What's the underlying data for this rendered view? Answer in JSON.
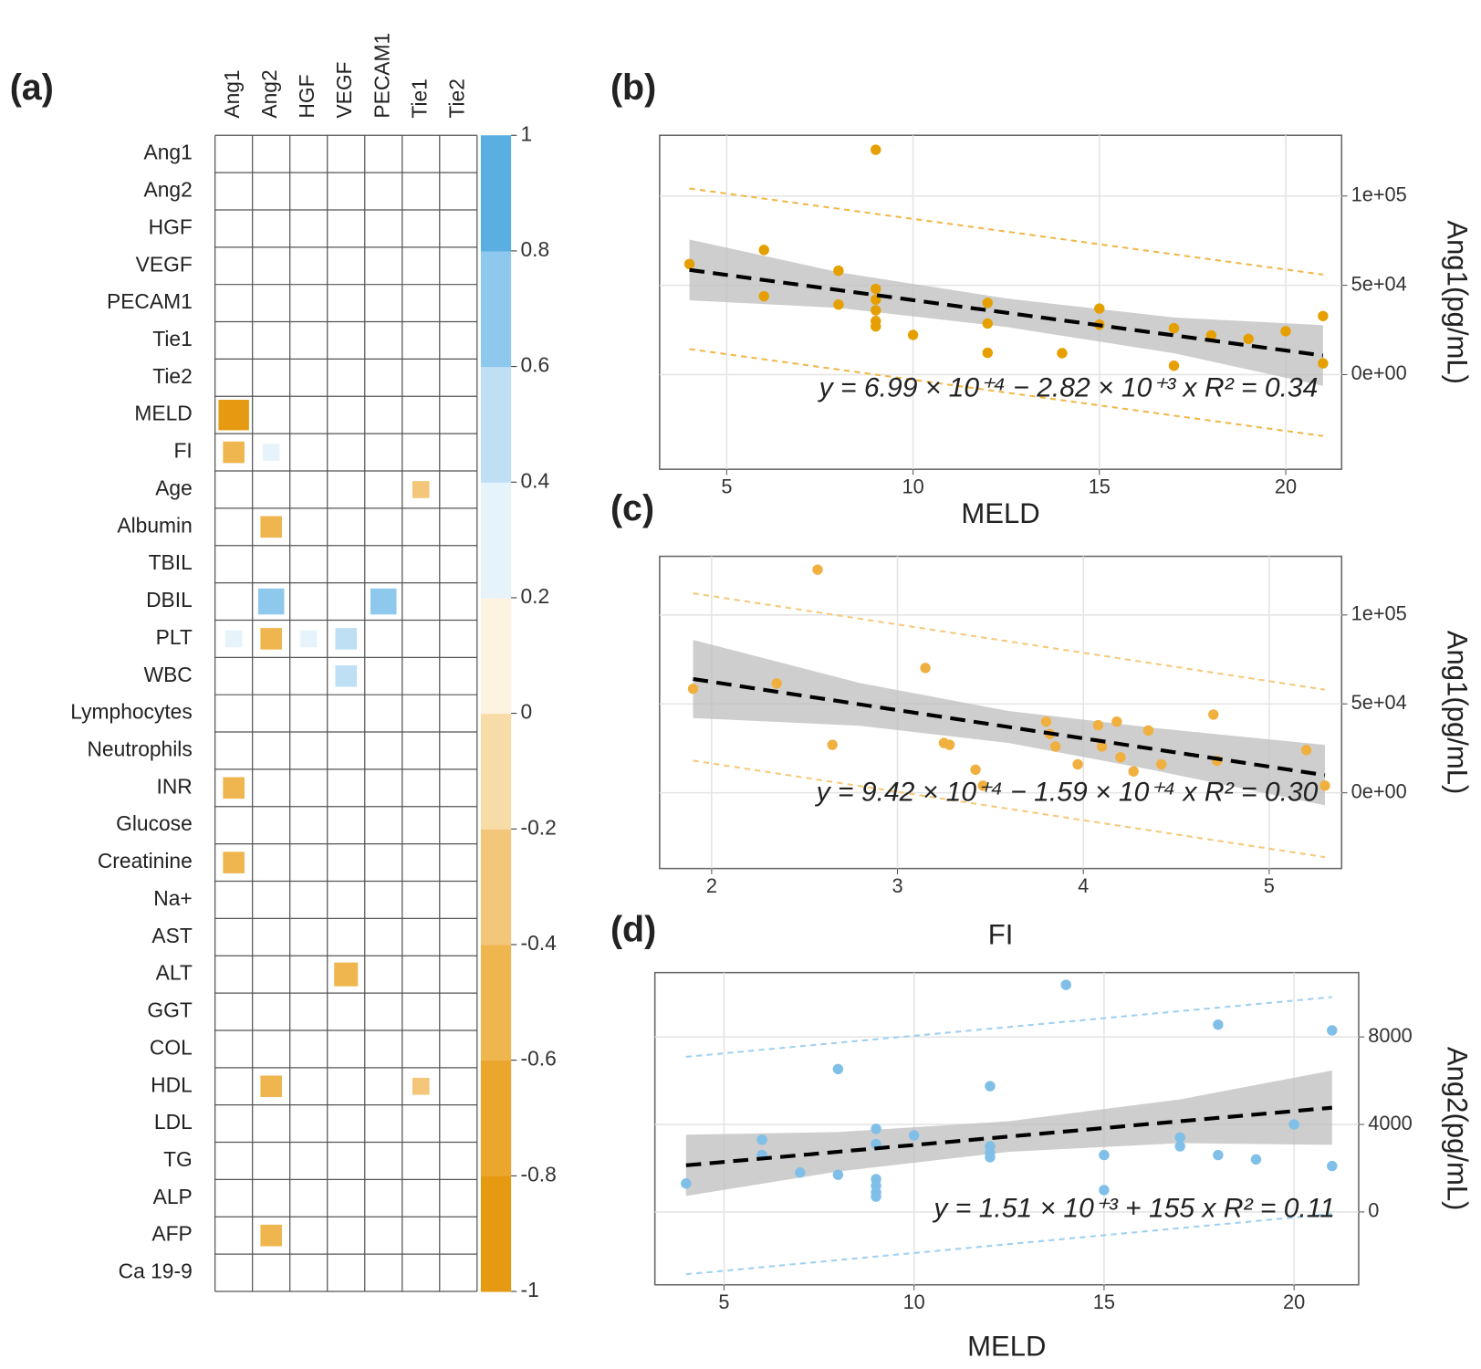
{
  "chart_data": [
    {
      "type": "heatmap",
      "panel_label": "(a)",
      "columns": [
        "Ang1",
        "Ang2",
        "HGF",
        "VEGF",
        "PECAM1",
        "Tie1",
        "Tie2"
      ],
      "rows": [
        "Ang1",
        "Ang2",
        "HGF",
        "VEGF",
        "PECAM1",
        "Tie1",
        "Tie2",
        "MELD",
        "FI",
        "Age",
        "Albumin",
        "TBIL",
        "DBIL",
        "PLT",
        "WBC",
        "Lymphocytes",
        "Neutrophils",
        "INR",
        "Glucose",
        "Creatinine",
        "Na+",
        "AST",
        "ALT",
        "GGT",
        "COL",
        "HDL",
        "LDL",
        "TG",
        "ALP",
        "AFP",
        "Ca 19-9"
      ],
      "cells": [
        [
          null,
          null,
          null,
          null,
          null,
          null,
          null
        ],
        [
          null,
          null,
          null,
          null,
          null,
          null,
          null
        ],
        [
          null,
          null,
          null,
          null,
          null,
          null,
          null
        ],
        [
          null,
          null,
          null,
          null,
          null,
          null,
          null
        ],
        [
          null,
          null,
          null,
          null,
          null,
          null,
          null
        ],
        [
          null,
          null,
          null,
          null,
          null,
          null,
          null
        ],
        [
          null,
          null,
          null,
          null,
          null,
          null,
          null
        ],
        [
          -0.9,
          null,
          null,
          null,
          null,
          null,
          null
        ],
        [
          -0.5,
          0.3,
          null,
          null,
          null,
          null,
          null
        ],
        [
          null,
          null,
          null,
          null,
          null,
          -0.3,
          null
        ],
        [
          null,
          -0.5,
          null,
          null,
          null,
          null,
          null
        ],
        [
          null,
          null,
          null,
          null,
          null,
          null,
          null
        ],
        [
          null,
          0.7,
          null,
          null,
          0.7,
          null,
          null
        ],
        [
          0.3,
          -0.5,
          0.3,
          0.5,
          null,
          null,
          null
        ],
        [
          null,
          null,
          null,
          0.5,
          null,
          null,
          null
        ],
        [
          null,
          null,
          null,
          null,
          null,
          null,
          null
        ],
        [
          null,
          null,
          null,
          null,
          null,
          null,
          null
        ],
        [
          -0.5,
          null,
          null,
          null,
          null,
          null,
          null
        ],
        [
          null,
          null,
          null,
          null,
          null,
          null,
          null
        ],
        [
          -0.5,
          null,
          null,
          null,
          null,
          null,
          null
        ],
        [
          null,
          null,
          null,
          null,
          null,
          null,
          null
        ],
        [
          null,
          null,
          null,
          null,
          null,
          null,
          null
        ],
        [
          null,
          null,
          null,
          -0.6,
          null,
          null,
          null
        ],
        [
          null,
          null,
          null,
          null,
          null,
          null,
          null
        ],
        [
          null,
          null,
          null,
          null,
          null,
          null,
          null
        ],
        [
          null,
          -0.5,
          null,
          null,
          null,
          -0.3,
          null
        ],
        [
          null,
          null,
          null,
          null,
          null,
          null,
          null
        ],
        [
          null,
          null,
          null,
          null,
          null,
          null,
          null
        ],
        [
          null,
          null,
          null,
          null,
          null,
          null,
          null
        ],
        [
          null,
          -0.5,
          null,
          null,
          null,
          null,
          null
        ],
        [
          null,
          null,
          null,
          null,
          null,
          null,
          null
        ]
      ],
      "clim": [
        -1,
        1
      ],
      "cticks": [
        1,
        0.8,
        0.6,
        0.4,
        0.2,
        0,
        -0.2,
        -0.4,
        -0.6,
        -0.8,
        -1
      ],
      "colorscale": [
        "#e69a12",
        "#eba62e",
        "#efb54f",
        "#f3c67a",
        "#f8dca8",
        "#fdf3e1",
        "#e6f3fb",
        "#bfe0f4",
        "#8ec8ec",
        "#5aafe2"
      ]
    },
    {
      "type": "scatter",
      "panel_label": "(b)",
      "xlabel": "MELD",
      "ylabel": "Ang1(pg/mL)",
      "equation": "y = 6.99 × 10⁺⁴ − 2.82 × 10⁺³ x R² = 0.34",
      "color": "#e69f00",
      "pi_color": "#f0b84a",
      "band_color": "#bdbdbd",
      "line_color": "#000000",
      "grid": true,
      "xlim": [
        3.2,
        21.5
      ],
      "ylim": [
        -53000,
        134000
      ],
      "xticks": [
        5,
        10,
        15,
        20
      ],
      "yticks": [
        {
          "value": 0,
          "label": "0e+00"
        },
        {
          "value": 50000,
          "label": "5e+04"
        },
        {
          "value": 100000,
          "label": "1e+05"
        }
      ],
      "x": [
        4,
        6,
        6,
        8,
        8,
        9,
        9,
        9,
        9,
        9,
        9,
        10,
        12,
        12,
        12,
        14,
        15,
        15,
        17,
        17,
        18,
        19,
        20,
        21,
        21
      ],
      "y": [
        61900,
        69800,
        43900,
        58200,
        39200,
        125900,
        48000,
        42000,
        36000,
        30000,
        27000,
        22200,
        40200,
        28600,
        12200,
        12000,
        37000,
        28000,
        26000,
        5000,
        22000,
        20000,
        24300,
        32800,
        6300
      ],
      "fit": {
        "intercept": 69900,
        "slope": -2820
      },
      "ci": {
        "x": [
          4,
          8,
          12.5,
          17,
          21
        ],
        "lower": [
          41620,
          37340,
          26650,
          11960,
          -6320
        ],
        "upper": [
          75620,
          57340,
          42650,
          31960,
          27680
        ]
      },
      "pi": {
        "x": [
          4,
          21
        ],
        "lower": [
          14300,
          -34400
        ],
        "upper": [
          104200,
          56000
        ]
      }
    },
    {
      "type": "scatter",
      "panel_label": "(c)",
      "xlabel": "FI",
      "ylabel": "Ang1(pg/mL)",
      "equation": "y = 9.42 × 10⁺⁴ − 1.59 × 10⁺⁴ x R² = 0.30",
      "color": "#f0b040",
      "pi_color": "#f5c97a",
      "band_color": "#bdbdbd",
      "line_color": "#000000",
      "grid": true,
      "xlim": [
        1.72,
        5.39
      ],
      "ylim": [
        -42600,
        133000
      ],
      "xticks": [
        2,
        3,
        4,
        5
      ],
      "yticks": [
        {
          "value": 0,
          "label": "0e+00"
        },
        {
          "value": 50000,
          "label": "5e+04"
        },
        {
          "value": 100000,
          "label": "1e+05"
        }
      ],
      "x": [
        1.9,
        2.35,
        2.57,
        2.65,
        3.15,
        3.25,
        3.28,
        3.42,
        3.46,
        3.8,
        3.82,
        3.85,
        3.97,
        4.08,
        4.1,
        4.18,
        4.2,
        4.27,
        4.35,
        4.42,
        4.7,
        4.72,
        5.2,
        5.3
      ],
      "y": [
        58500,
        61500,
        125500,
        27000,
        70200,
        28000,
        27000,
        13000,
        4000,
        40000,
        33000,
        26000,
        16000,
        38000,
        26000,
        40000,
        20000,
        12000,
        35000,
        16000,
        44000,
        18000,
        24000,
        4000
      ],
      "fit": {
        "intercept": 94200,
        "slope": -15900
      },
      "ci": {
        "x": [
          1.9,
          2.8,
          3.6,
          4.4,
          5.3
        ],
        "lower": [
          42000,
          37680,
          27960,
          12240,
          -7070
        ],
        "upper": [
          86000,
          61680,
          45960,
          36240,
          26930
        ]
      },
      "pi": {
        "x": [
          1.9,
          5.3
        ],
        "lower": [
          18100,
          -36200
        ],
        "upper": [
          112200,
          58000
        ]
      }
    },
    {
      "type": "scatter",
      "panel_label": "(d)",
      "xlabel": "MELD",
      "ylabel": "Ang2(pg/mL)",
      "equation": "y = 1.51 × 10⁺³ + 155 x R² = 0.11",
      "color": "#7fbfe8",
      "pi_color": "#9fd0ef",
      "band_color": "#bdbdbd",
      "line_color": "#000000",
      "grid": true,
      "xlim": [
        3.18,
        21.7
      ],
      "ylim": [
        -3330,
        10940
      ],
      "xticks": [
        5,
        10,
        15,
        20
      ],
      "yticks": [
        0,
        4000,
        8000
      ],
      "x": [
        4,
        6,
        6,
        7,
        8,
        8,
        9,
        9,
        9,
        9,
        9,
        9,
        10,
        12,
        12,
        12,
        12,
        14,
        15,
        15,
        17,
        17,
        18,
        18,
        19,
        20,
        21,
        21
      ],
      "y": [
        1300,
        3300,
        2600,
        1800,
        6530,
        1700,
        3800,
        3100,
        1500,
        1200,
        900,
        700,
        3500,
        5750,
        3000,
        2700,
        2500,
        10380,
        2600,
        1000,
        3400,
        3000,
        8560,
        2600,
        2400,
        4000,
        8300,
        2100
      ],
      "fit": {
        "intercept": 1510,
        "slope": 155
      },
      "ci": {
        "x": [
          4,
          8,
          12.5,
          17,
          21
        ],
        "lower": [
          730,
          1850,
          2748,
          3145,
          3065
        ],
        "upper": [
          3530,
          3650,
          4148,
          5145,
          6465
        ]
      },
      "pi": {
        "x": [
          4,
          21
        ],
        "lower": [
          -2850,
          -90
        ],
        "upper": [
          7090,
          9820
        ]
      }
    }
  ]
}
